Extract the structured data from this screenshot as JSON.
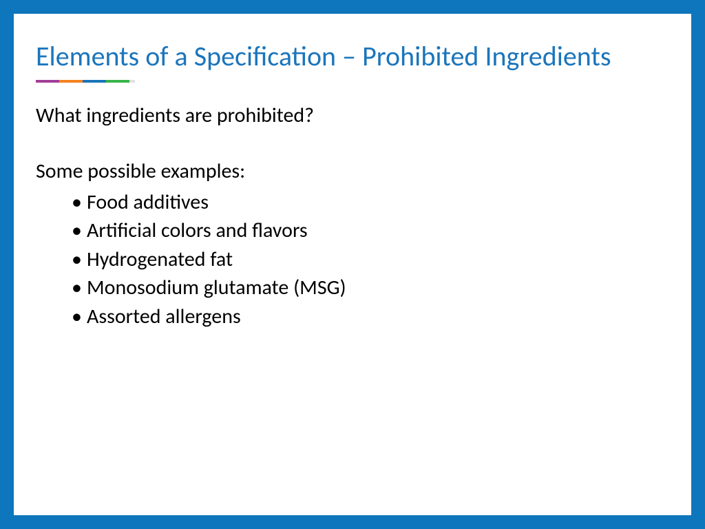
{
  "slide": {
    "title": "Elements of a Specification – Prohibited Ingredients",
    "question": "What ingredients are prohibited?",
    "examples_label": "Some possible examples:",
    "bullets": [
      "Food additives",
      "Artificial colors and flavors",
      "Hydrogenated fat",
      "Monosodium glutamate (MSG)",
      "Assorted allergens"
    ]
  },
  "colors": {
    "border": "#0e76bc",
    "title": "#1b75bb",
    "text": "#000000",
    "underline_segments": [
      "#a23e97",
      "#f58220",
      "#1b75bb",
      "#39b54a",
      "#e0e0e0"
    ]
  },
  "typography": {
    "title_fontsize": 40,
    "body_fontsize": 30,
    "font_family": "Calibri"
  }
}
